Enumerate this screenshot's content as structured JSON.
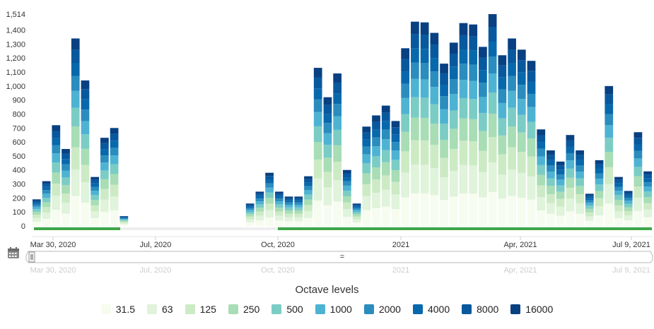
{
  "chart_data": {
    "type": "bar",
    "stacked": true,
    "xaxis": {
      "tick_labels": [
        "Mar 30, 2020",
        "Jul, 2020",
        "Oct, 2020",
        "2021",
        "Apr, 2021",
        "Jul 9, 2021"
      ]
    },
    "yaxis": {
      "tick_labels": [
        "0",
        "100",
        "200",
        "300",
        "400",
        "500",
        "600",
        "700",
        "800",
        "900",
        "1,000",
        "1,100",
        "1,200",
        "1,300",
        "1,400",
        "1,514"
      ],
      "ylim": [
        0,
        1514
      ],
      "grid": false
    },
    "legend": {
      "title": "Octave levels",
      "placement": "bottom"
    },
    "series": [
      {
        "name": "31.5"
      },
      {
        "name": "63"
      },
      {
        "name": "125"
      },
      {
        "name": "250"
      },
      {
        "name": "500"
      },
      {
        "name": "1000"
      },
      {
        "name": "2000"
      },
      {
        "name": "4000"
      },
      {
        "name": "8000"
      },
      {
        "name": "16000"
      }
    ],
    "colors": [
      "#f7fcf0",
      "#e0f3db",
      "#ccebc5",
      "#a8ddb5",
      "#7bccc4",
      "#4eb3d3",
      "#2b8cbe",
      "#0868ac",
      "#08589e",
      "#084081"
    ],
    "bar_totals": [
      190,
      320,
      720,
      550,
      1340,
      1040,
      350,
      630,
      700,
      70,
      null,
      null,
      null,
      null,
      null,
      null,
      null,
      null,
      null,
      null,
      null,
      null,
      160,
      245,
      380,
      245,
      210,
      210,
      355,
      1130,
      920,
      1090,
      400,
      160,
      710,
      790,
      860,
      750,
      1270,
      1460,
      1455,
      1380,
      1160,
      1310,
      1450,
      1440,
      1280,
      1514,
      1220,
      1340,
      1260,
      1180,
      690,
      540,
      460,
      650,
      540,
      230,
      470,
      1000,
      350,
      250,
      670,
      390
    ],
    "navigator": {
      "tick_labels": [
        "Mar 30, 2020",
        "Jul, 2020",
        "Oct, 2020",
        "2021",
        "Apr, 2021",
        "Jul 9, 2021"
      ],
      "handle_label": "="
    },
    "coverage_segments": [
      {
        "has_data": true
      },
      {
        "has_data": false
      },
      {
        "has_data": true
      }
    ]
  },
  "ui": {
    "calendar_icon": "calendar-icon",
    "coverage_color": "#3fa64a",
    "gap_color": "#eeeeee"
  }
}
